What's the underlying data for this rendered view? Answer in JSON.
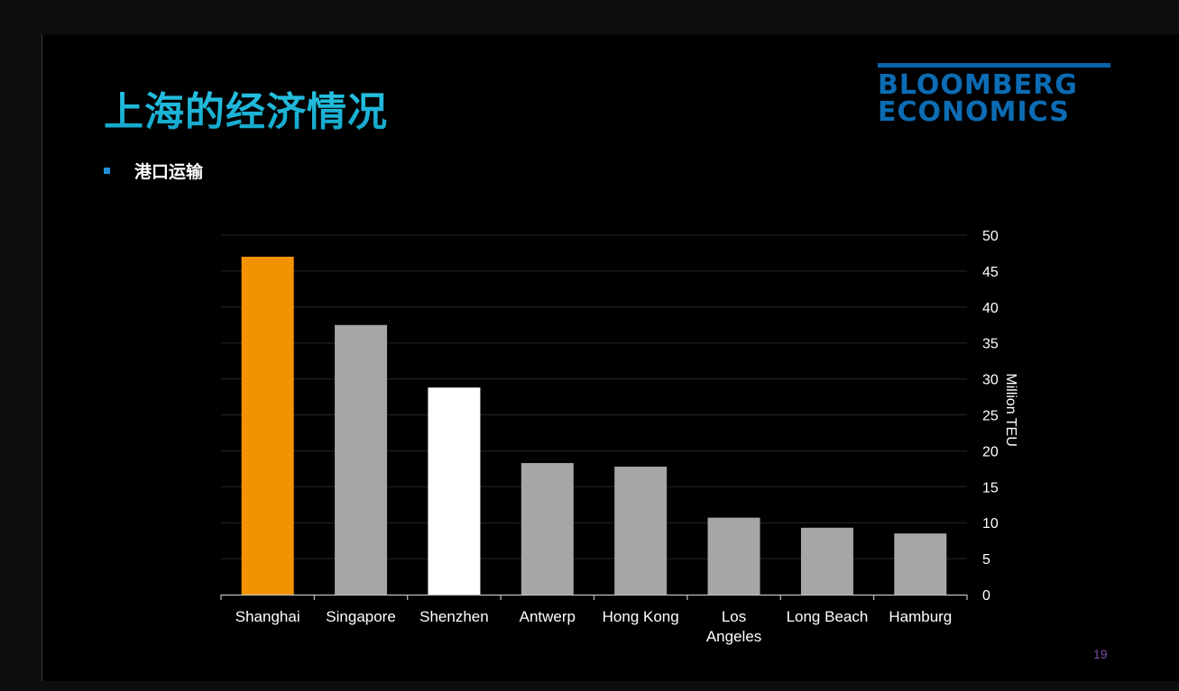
{
  "slide": {
    "title": "上海的经济情况",
    "bullet": "港口运输",
    "page_number": "19",
    "logo": {
      "line1": "BLOOMBERG",
      "line2": "ECONOMICS"
    }
  },
  "chart_data": {
    "type": "bar",
    "categories": [
      [
        "Shanghai"
      ],
      [
        "Singapore"
      ],
      [
        "Shenzhen"
      ],
      [
        "Antwerp"
      ],
      [
        "Hong Kong"
      ],
      [
        "Los",
        "Angeles"
      ],
      [
        "Long Beach"
      ],
      [
        "Hamburg"
      ]
    ],
    "values": [
      47.0,
      37.5,
      28.8,
      18.3,
      17.8,
      10.7,
      9.3,
      8.5
    ],
    "colors": [
      "#f39200",
      "#a6a6a6",
      "#ffffff",
      "#a6a6a6",
      "#a6a6a6",
      "#a6a6a6",
      "#a6a6a6",
      "#a6a6a6"
    ],
    "ylabel": "Million TEU",
    "ylim": [
      0,
      50
    ],
    "yticks": [
      0,
      5,
      10,
      15,
      20,
      25,
      30,
      35,
      40,
      45,
      50
    ],
    "y_axis_side": "right",
    "grid": true,
    "gridline_color": "#262626",
    "axis_color": "#bfbfbf"
  }
}
